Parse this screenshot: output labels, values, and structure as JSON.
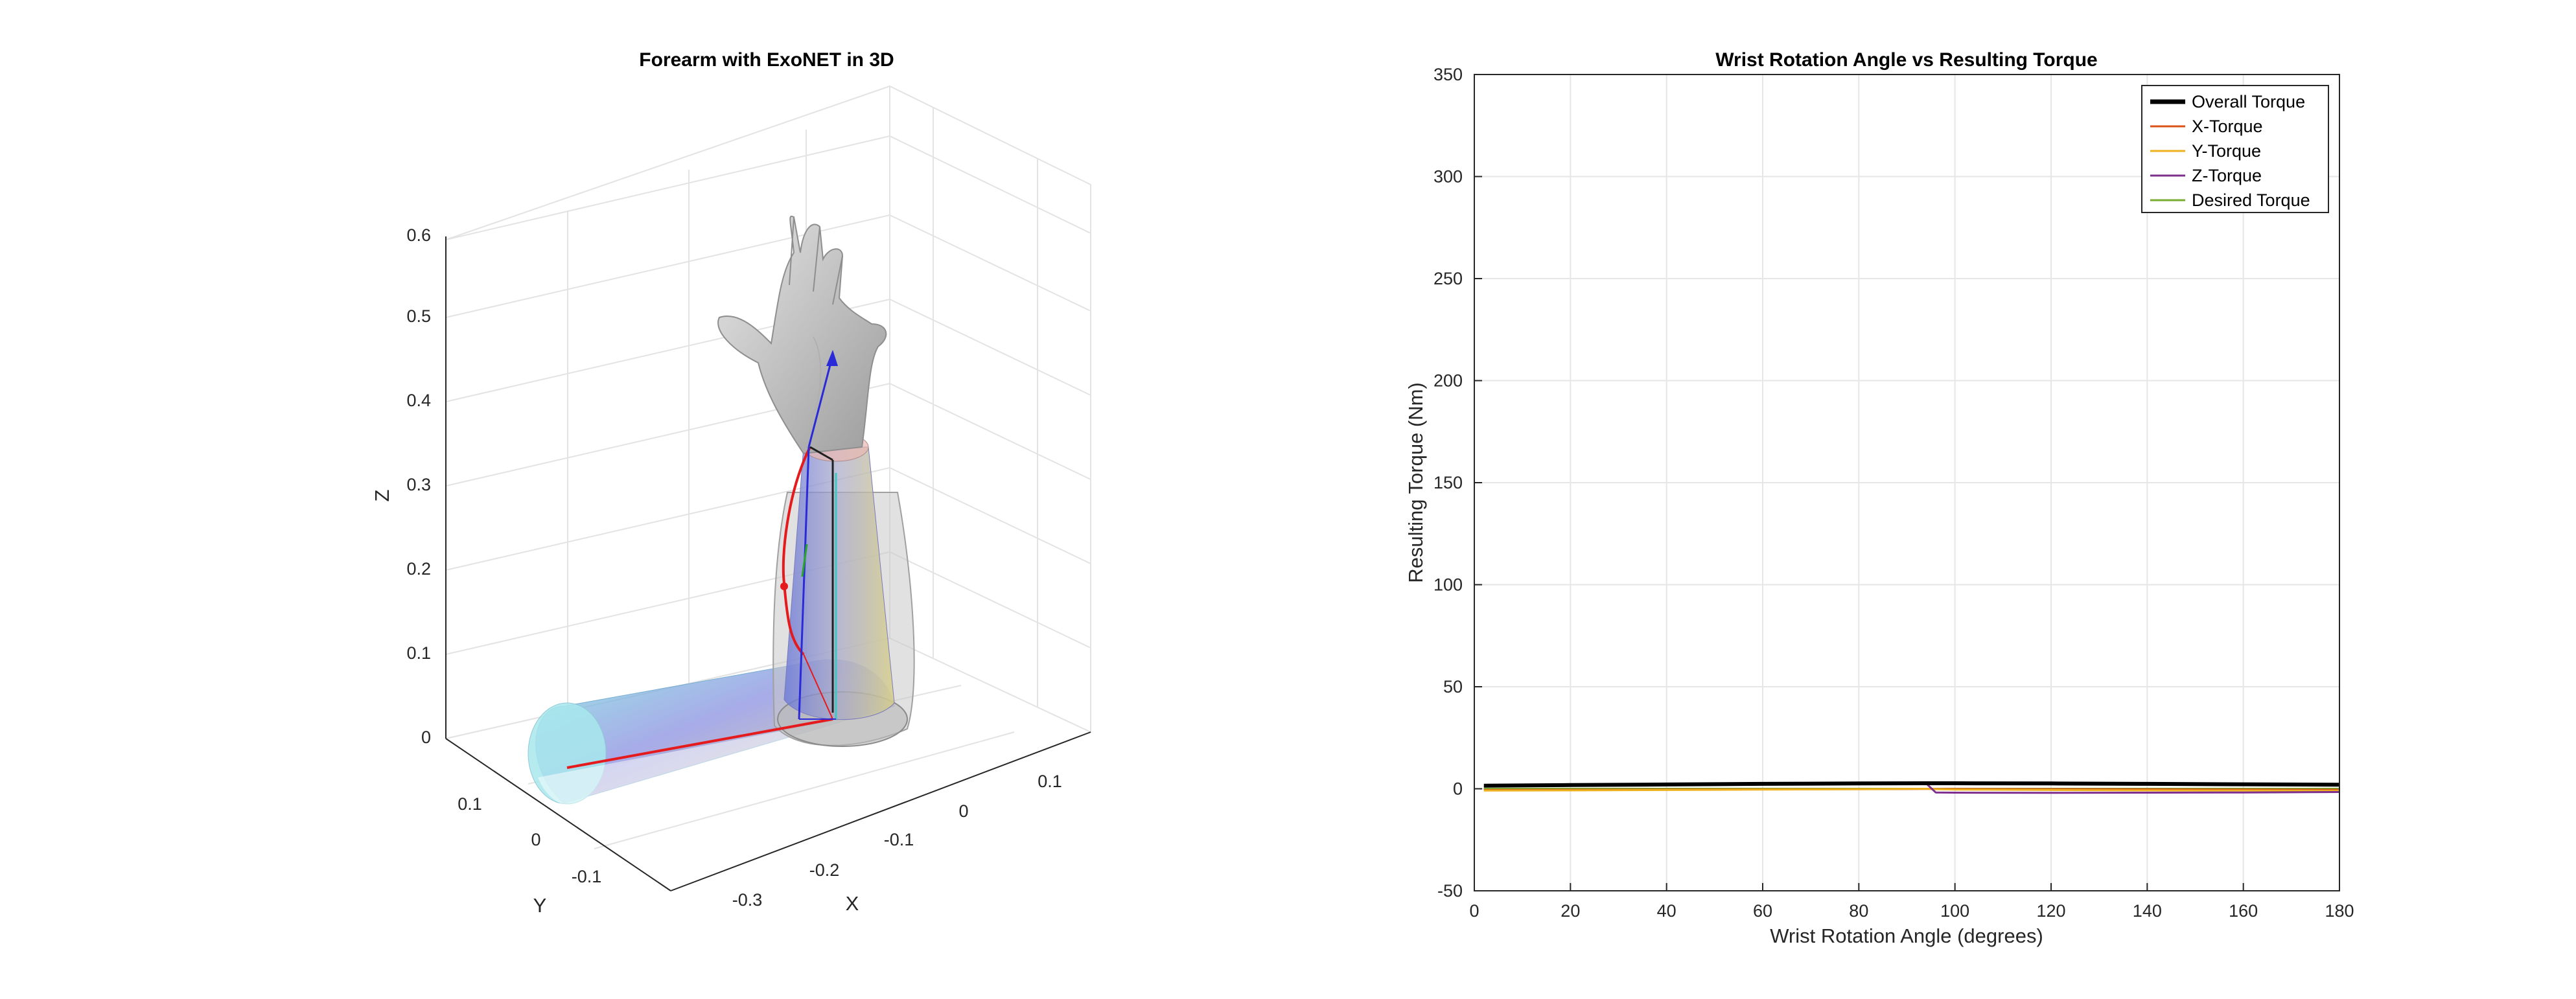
{
  "chart_data": [
    {
      "type": "3d-surface",
      "title": "Forearm with ExoNET in 3D",
      "xlabel": "X",
      "ylabel": "Y",
      "zlabel": "Z",
      "x_ticks": [
        "-0.3",
        "-0.2",
        "-0.1",
        "0",
        "0.1"
      ],
      "y_ticks": [
        "-0.1",
        "0",
        "0.1"
      ],
      "z_ticks": [
        "0",
        "0.1",
        "0.2",
        "0.3",
        "0.4",
        "0.5",
        "0.6"
      ],
      "xlim": [
        -0.35,
        0.15
      ],
      "ylim": [
        -0.15,
        0.15
      ],
      "zlim": [
        0,
        0.6
      ],
      "grid": true
    },
    {
      "type": "line",
      "title": "Wrist Rotation Angle vs Resulting Torque",
      "xlabel": "Wrist Rotation Angle (degrees)",
      "ylabel": "Resulting Torque (Nm)",
      "xlim": [
        0,
        180
      ],
      "ylim": [
        -50,
        350
      ],
      "x_ticks": [
        0,
        20,
        40,
        60,
        80,
        100,
        120,
        140,
        160,
        180
      ],
      "y_ticks": [
        -50,
        0,
        50,
        100,
        150,
        200,
        250,
        300,
        350
      ],
      "grid": true,
      "legend_position": "top-right",
      "x": [
        2,
        20,
        40,
        60,
        80,
        94,
        96,
        100,
        120,
        140,
        160,
        180
      ],
      "series": [
        {
          "name": "Overall Torque",
          "color": "#000000",
          "values": [
            1.5,
            1.8,
            2.1,
            2.4,
            2.6,
            2.7,
            2.7,
            2.7,
            2.6,
            2.4,
            2.2,
            2.0
          ]
        },
        {
          "name": "X-Torque",
          "color": "#D95319",
          "values": [
            -0.6,
            -0.5,
            -0.4,
            -0.3,
            -0.2,
            -0.1,
            -0.1,
            -0.1,
            -0.2,
            -0.3,
            -0.4,
            -0.5
          ]
        },
        {
          "name": "Y-Torque",
          "color": "#EDB120",
          "values": [
            -0.9,
            -0.8,
            -0.6,
            -0.4,
            -0.2,
            0.0,
            -0.2,
            -0.4,
            -0.6,
            -0.8,
            -0.9,
            -1.0
          ]
        },
        {
          "name": "Z-Torque",
          "color": "#7E2F8E",
          "values": [
            1.2,
            1.5,
            1.9,
            2.2,
            2.5,
            2.6,
            -1.8,
            -1.9,
            -2.0,
            -1.9,
            -1.8,
            -1.6
          ]
        },
        {
          "name": "Desired Torque",
          "color": "#77AC30",
          "values": [
            0,
            0,
            0,
            0,
            0,
            0,
            0,
            0,
            0,
            0,
            0,
            0
          ]
        }
      ]
    }
  ]
}
